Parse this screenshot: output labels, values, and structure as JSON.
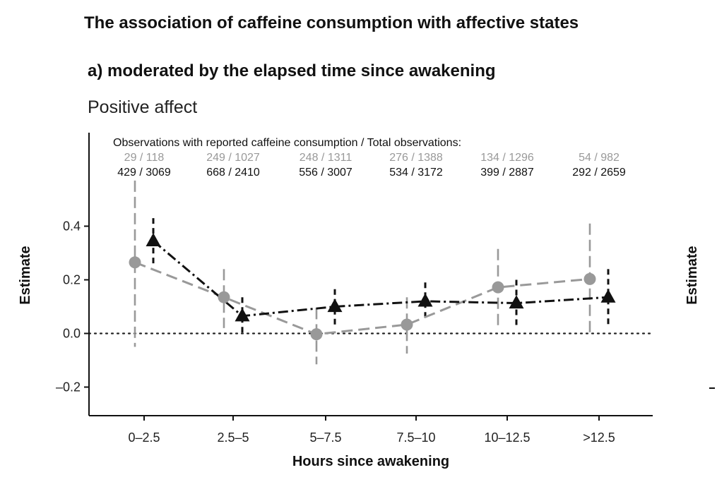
{
  "chart_data": {
    "type": "line",
    "title": "The association of caffeine consumption with affective states",
    "subtitle": "a) moderated by the elapsed time since awakening",
    "panel_title": "Positive affect",
    "observations_header": "Observations with reported caffeine consumption / Total observations:",
    "xlabel": "Hours since awakening",
    "ylabel": "Estimate",
    "right_ylabel": "Estimate",
    "categories": [
      "0–2.5",
      "2.5–5",
      "5–7.5",
      "7.5–10",
      "10–12.5",
      ">12.5"
    ],
    "ylim": [
      -0.31,
      0.76
    ],
    "yticks": [
      {
        "value": -0.2,
        "label": "–0.2"
      },
      {
        "value": 0.0,
        "label": "0.0"
      },
      {
        "value": 0.2,
        "label": "0.2"
      },
      {
        "value": 0.4,
        "label": "0.4"
      }
    ],
    "reference_line": 0,
    "series": [
      {
        "color": "#999999",
        "marker": "circle",
        "line_style": "dashed",
        "values": [
          0.265,
          0.135,
          -0.003,
          0.033,
          0.172,
          0.203
        ],
        "ci_low": [
          -0.05,
          0.02,
          -0.115,
          -0.075,
          0.03,
          0.0
        ],
        "ci_high": [
          0.57,
          0.24,
          0.095,
          0.135,
          0.315,
          0.41
        ],
        "obs": [
          "29 / 118",
          "249 / 1027",
          "248 / 1311",
          "276 / 1388",
          "134 / 1296",
          "54 / 982"
        ]
      },
      {
        "color": "#111111",
        "marker": "triangle",
        "line_style": "dashdot",
        "values": [
          0.345,
          0.065,
          0.1,
          0.12,
          0.113,
          0.135
        ],
        "ci_low": [
          0.255,
          -0.01,
          0.03,
          0.05,
          0.03,
          0.035
        ],
        "ci_high": [
          0.43,
          0.135,
          0.165,
          0.19,
          0.2,
          0.24
        ],
        "obs": [
          "429 / 3069",
          "668 / 2410",
          "556 / 3007",
          "534 / 3172",
          "399 / 2887",
          "292 / 2659"
        ]
      }
    ]
  }
}
